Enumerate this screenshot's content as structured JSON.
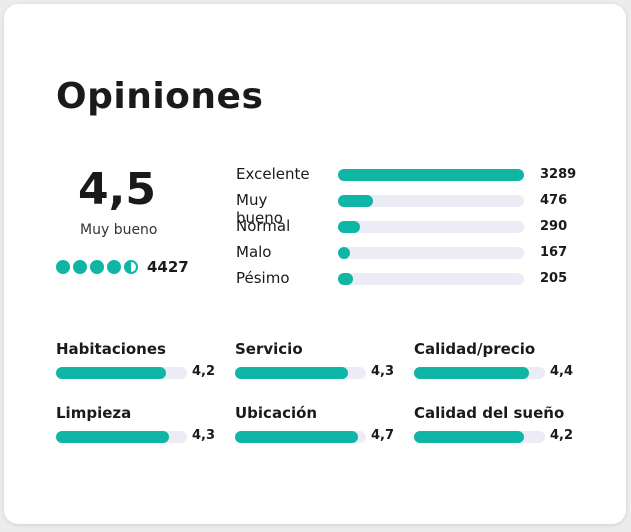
{
  "title": "Opiniones",
  "summary": {
    "score": "4,5",
    "label": "Muy bueno",
    "rating_fraction": 0.9,
    "total_reviews": "4427"
  },
  "distribution": [
    {
      "label": "Excelente",
      "count": "3289",
      "fraction": 1.0
    },
    {
      "label": "Muy bueno",
      "count": "476",
      "fraction": 0.19
    },
    {
      "label": "Normal",
      "count": "290",
      "fraction": 0.12
    },
    {
      "label": "Malo",
      "count": "167",
      "fraction": 0.06
    },
    {
      "label": "Pésimo",
      "count": "205",
      "fraction": 0.08
    }
  ],
  "categories": [
    {
      "label": "Habitaciones",
      "value": "4,2",
      "fraction": 0.84
    },
    {
      "label": "Servicio",
      "value": "4,3",
      "fraction": 0.86
    },
    {
      "label": "Calidad/precio",
      "value": "4,4",
      "fraction": 0.88
    },
    {
      "label": "Limpieza",
      "value": "4,3",
      "fraction": 0.86
    },
    {
      "label": "Ubicación",
      "value": "4,7",
      "fraction": 0.94
    },
    {
      "label": "Calidad del sueño",
      "value": "4,2",
      "fraction": 0.84
    }
  ],
  "colors": {
    "accent": "#0fb5a5",
    "track": "#ececf6"
  }
}
